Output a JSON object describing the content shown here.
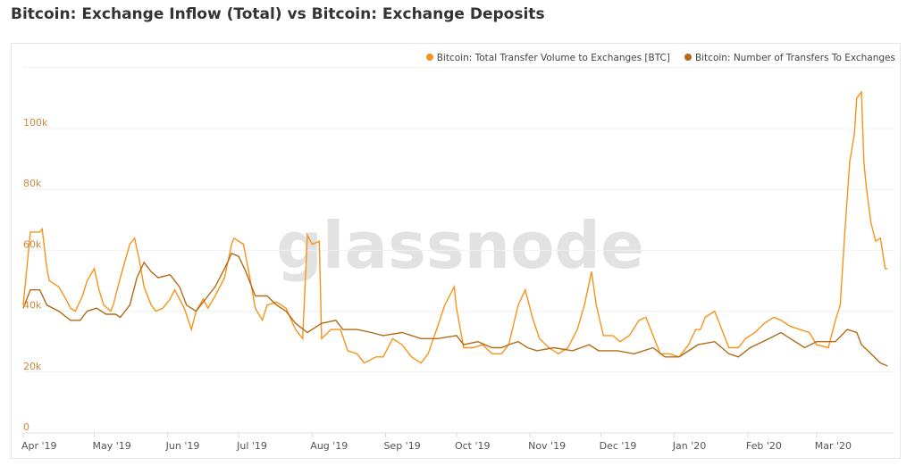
{
  "title": "Bitcoin: Exchange Inflow (Total) vs Bitcoin: Exchange Deposits",
  "watermark": "glassnode",
  "chart_data": {
    "type": "line",
    "title": "Bitcoin: Exchange Inflow (Total) vs Bitcoin: Exchange Deposits",
    "x_unit": "days since Apr 1 2019",
    "xlim": [
      0,
      368
    ],
    "ylim": [
      0,
      120000
    ],
    "grid": true,
    "legend_position": "top-right",
    "y_ticks": [
      {
        "v": 0,
        "label": "0"
      },
      {
        "v": 20000,
        "label": "20k"
      },
      {
        "v": 40000,
        "label": "40k"
      },
      {
        "v": 60000,
        "label": "60k"
      },
      {
        "v": 80000,
        "label": "80k"
      },
      {
        "v": 100000,
        "label": "100k"
      }
    ],
    "x_ticks": [
      {
        "d": 0,
        "label": "Apr '19"
      },
      {
        "d": 30,
        "label": "May '19"
      },
      {
        "d": 61,
        "label": "Jun '19"
      },
      {
        "d": 91,
        "label": "Jul '19"
      },
      {
        "d": 122,
        "label": "Aug '19"
      },
      {
        "d": 153,
        "label": "Sep '19"
      },
      {
        "d": 183,
        "label": "Oct '19"
      },
      {
        "d": 214,
        "label": "Nov '19"
      },
      {
        "d": 244,
        "label": "Dec '19"
      },
      {
        "d": 275,
        "label": "Jan '20"
      },
      {
        "d": 306,
        "label": "Feb '20"
      },
      {
        "d": 335,
        "label": "Mar '20"
      }
    ],
    "series": [
      {
        "name": "Bitcoin: Total Transfer Volume to Exchanges [BTC]",
        "color": "#f7931a",
        "unit_k": true,
        "points": [
          [
            0,
            42
          ],
          [
            3,
            66
          ],
          [
            7,
            66
          ],
          [
            8,
            67
          ],
          [
            10,
            54
          ],
          [
            11,
            50
          ],
          [
            15,
            48
          ],
          [
            18,
            44
          ],
          [
            20,
            41
          ],
          [
            22,
            40
          ],
          [
            25,
            45
          ],
          [
            27,
            50
          ],
          [
            30,
            54
          ],
          [
            32,
            47
          ],
          [
            34,
            42
          ],
          [
            37,
            40
          ],
          [
            38,
            42
          ],
          [
            41,
            51
          ],
          [
            45,
            62
          ],
          [
            47,
            64
          ],
          [
            49,
            57
          ],
          [
            51,
            48
          ],
          [
            54,
            42
          ],
          [
            56,
            40
          ],
          [
            59,
            41
          ],
          [
            62,
            44
          ],
          [
            64,
            47
          ],
          [
            68,
            41
          ],
          [
            71,
            34
          ],
          [
            73,
            40
          ],
          [
            76,
            44
          ],
          [
            78,
            41
          ],
          [
            81,
            45
          ],
          [
            85,
            51
          ],
          [
            88,
            62
          ],
          [
            89,
            64
          ],
          [
            93,
            62
          ],
          [
            95,
            54
          ],
          [
            98,
            41
          ],
          [
            101,
            37
          ],
          [
            103,
            42
          ],
          [
            107,
            43
          ],
          [
            111,
            41
          ],
          [
            115,
            34
          ],
          [
            118,
            31
          ],
          [
            120,
            65
          ],
          [
            122,
            62
          ],
          [
            125,
            63
          ],
          [
            126,
            31
          ],
          [
            130,
            34
          ],
          [
            134,
            34
          ],
          [
            137,
            27
          ],
          [
            141,
            26
          ],
          [
            144,
            23
          ],
          [
            149,
            25
          ],
          [
            152,
            25
          ],
          [
            156,
            31
          ],
          [
            160,
            29
          ],
          [
            164,
            25
          ],
          [
            168,
            23
          ],
          [
            171,
            26
          ],
          [
            175,
            35
          ],
          [
            178,
            42
          ],
          [
            182,
            48
          ],
          [
            183,
            41
          ],
          [
            186,
            28
          ],
          [
            190,
            28
          ],
          [
            194,
            29
          ],
          [
            198,
            26
          ],
          [
            202,
            26
          ],
          [
            205,
            29
          ],
          [
            209,
            42
          ],
          [
            212,
            47
          ],
          [
            215,
            38
          ],
          [
            218,
            31
          ],
          [
            222,
            28
          ],
          [
            226,
            26
          ],
          [
            230,
            28
          ],
          [
            234,
            34
          ],
          [
            237,
            42
          ],
          [
            240,
            53
          ],
          [
            242,
            42
          ],
          [
            245,
            32
          ],
          [
            249,
            32
          ],
          [
            252,
            30
          ],
          [
            256,
            32
          ],
          [
            260,
            37
          ],
          [
            263,
            38
          ],
          [
            266,
            32
          ],
          [
            269,
            26
          ],
          [
            273,
            26
          ],
          [
            277,
            25
          ],
          [
            281,
            29
          ],
          [
            284,
            34
          ],
          [
            286,
            34
          ],
          [
            288,
            38
          ],
          [
            292,
            40
          ],
          [
            295,
            34
          ],
          [
            298,
            28
          ],
          [
            302,
            28
          ],
          [
            305,
            31
          ],
          [
            309,
            33
          ],
          [
            313,
            36
          ],
          [
            317,
            38
          ],
          [
            320,
            37
          ],
          [
            324,
            35
          ],
          [
            328,
            34
          ],
          [
            332,
            33
          ],
          [
            335,
            29
          ],
          [
            340,
            28
          ],
          [
            343,
            37
          ],
          [
            345,
            42
          ],
          [
            347,
            66
          ],
          [
            349,
            89
          ],
          [
            351,
            98
          ],
          [
            352,
            110
          ],
          [
            354,
            112
          ],
          [
            355,
            89
          ],
          [
            356,
            81
          ],
          [
            358,
            69
          ],
          [
            360,
            63
          ],
          [
            362,
            64
          ],
          [
            364,
            54
          ],
          [
            365,
            54
          ]
        ]
      },
      {
        "name": "Bitcoin: Number of Transfers To Exchanges",
        "color": "#b36b17",
        "unit_k": true,
        "points": [
          [
            0,
            41
          ],
          [
            3,
            47
          ],
          [
            7,
            47
          ],
          [
            10,
            42
          ],
          [
            15,
            40
          ],
          [
            20,
            37
          ],
          [
            24,
            37
          ],
          [
            27,
            40
          ],
          [
            31,
            41
          ],
          [
            35,
            39
          ],
          [
            39,
            39
          ],
          [
            41,
            38
          ],
          [
            45,
            42
          ],
          [
            48,
            51
          ],
          [
            51,
            56
          ],
          [
            54,
            53
          ],
          [
            57,
            51
          ],
          [
            62,
            52
          ],
          [
            66,
            48
          ],
          [
            69,
            42
          ],
          [
            73,
            40
          ],
          [
            77,
            44
          ],
          [
            81,
            48
          ],
          [
            85,
            54
          ],
          [
            88,
            59
          ],
          [
            91,
            58
          ],
          [
            94,
            53
          ],
          [
            98,
            45
          ],
          [
            103,
            45
          ],
          [
            107,
            42
          ],
          [
            111,
            40
          ],
          [
            115,
            36
          ],
          [
            120,
            33
          ],
          [
            126,
            36
          ],
          [
            132,
            37
          ],
          [
            135,
            34
          ],
          [
            141,
            34
          ],
          [
            147,
            33
          ],
          [
            152,
            32
          ],
          [
            160,
            33
          ],
          [
            168,
            31
          ],
          [
            175,
            31
          ],
          [
            183,
            32
          ],
          [
            186,
            29
          ],
          [
            192,
            30
          ],
          [
            198,
            28
          ],
          [
            202,
            28
          ],
          [
            205,
            29
          ],
          [
            209,
            30
          ],
          [
            213,
            28
          ],
          [
            217,
            27
          ],
          [
            224,
            28
          ],
          [
            232,
            27
          ],
          [
            239,
            29
          ],
          [
            243,
            27
          ],
          [
            251,
            27
          ],
          [
            258,
            26
          ],
          [
            266,
            28
          ],
          [
            271,
            25
          ],
          [
            277,
            25
          ],
          [
            285,
            29
          ],
          [
            292,
            30
          ],
          [
            298,
            26
          ],
          [
            302,
            25
          ],
          [
            307,
            28
          ],
          [
            315,
            31
          ],
          [
            320,
            33
          ],
          [
            324,
            31
          ],
          [
            330,
            28
          ],
          [
            335,
            30
          ],
          [
            343,
            30
          ],
          [
            348,
            34
          ],
          [
            352,
            33
          ],
          [
            354,
            29
          ],
          [
            358,
            26
          ],
          [
            362,
            23
          ],
          [
            365,
            22
          ]
        ]
      }
    ]
  }
}
